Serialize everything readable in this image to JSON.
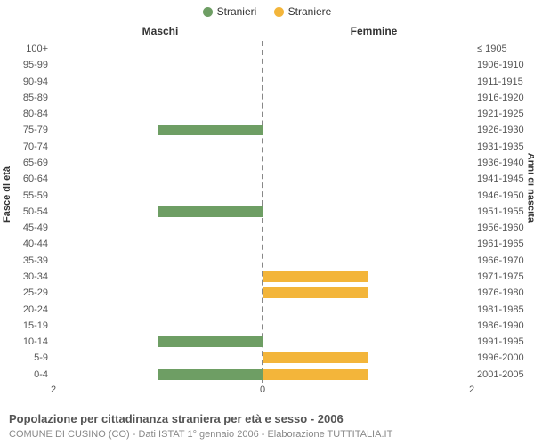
{
  "legend": {
    "male": {
      "label": "Stranieri",
      "color": "#6e9e64"
    },
    "female": {
      "label": "Straniere",
      "color": "#f3b53a"
    }
  },
  "headers": {
    "left": "Maschi",
    "right": "Femmine"
  },
  "axis_titles": {
    "left": "Fasce di età",
    "right": "Anni di nascita"
  },
  "title": "Popolazione per cittadinanza straniera per età e sesso - 2006",
  "subtitle": "COMUNE DI CUSINO (CO) - Dati ISTAT 1° gennaio 2006 - Elaborazione TUTTITALIA.IT",
  "chart": {
    "type": "pyramid-bar",
    "xmax": 2,
    "xticks": [
      2,
      0,
      2
    ],
    "bar_width_ratio": 0.67,
    "background_color": "#ffffff",
    "center_line_color": "#888888",
    "tick_color": "#555555",
    "rows": [
      {
        "age": "100+",
        "birth": "≤ 1905",
        "male": 0,
        "female": 0
      },
      {
        "age": "95-99",
        "birth": "1906-1910",
        "male": 0,
        "female": 0
      },
      {
        "age": "90-94",
        "birth": "1911-1915",
        "male": 0,
        "female": 0
      },
      {
        "age": "85-89",
        "birth": "1916-1920",
        "male": 0,
        "female": 0
      },
      {
        "age": "80-84",
        "birth": "1921-1925",
        "male": 0,
        "female": 0
      },
      {
        "age": "75-79",
        "birth": "1926-1930",
        "male": 1,
        "female": 0
      },
      {
        "age": "70-74",
        "birth": "1931-1935",
        "male": 0,
        "female": 0
      },
      {
        "age": "65-69",
        "birth": "1936-1940",
        "male": 0,
        "female": 0
      },
      {
        "age": "60-64",
        "birth": "1941-1945",
        "male": 0,
        "female": 0
      },
      {
        "age": "55-59",
        "birth": "1946-1950",
        "male": 0,
        "female": 0
      },
      {
        "age": "50-54",
        "birth": "1951-1955",
        "male": 1,
        "female": 0
      },
      {
        "age": "45-49",
        "birth": "1956-1960",
        "male": 0,
        "female": 0
      },
      {
        "age": "40-44",
        "birth": "1961-1965",
        "male": 0,
        "female": 0
      },
      {
        "age": "35-39",
        "birth": "1966-1970",
        "male": 0,
        "female": 0
      },
      {
        "age": "30-34",
        "birth": "1971-1975",
        "male": 0,
        "female": 1
      },
      {
        "age": "25-29",
        "birth": "1976-1980",
        "male": 0,
        "female": 1
      },
      {
        "age": "20-24",
        "birth": "1981-1985",
        "male": 0,
        "female": 0
      },
      {
        "age": "15-19",
        "birth": "1986-1990",
        "male": 0,
        "female": 0
      },
      {
        "age": "10-14",
        "birth": "1991-1995",
        "male": 1,
        "female": 0
      },
      {
        "age": "5-9",
        "birth": "1996-2000",
        "male": 0,
        "female": 1
      },
      {
        "age": "0-4",
        "birth": "2001-2005",
        "male": 1,
        "female": 1
      }
    ]
  }
}
